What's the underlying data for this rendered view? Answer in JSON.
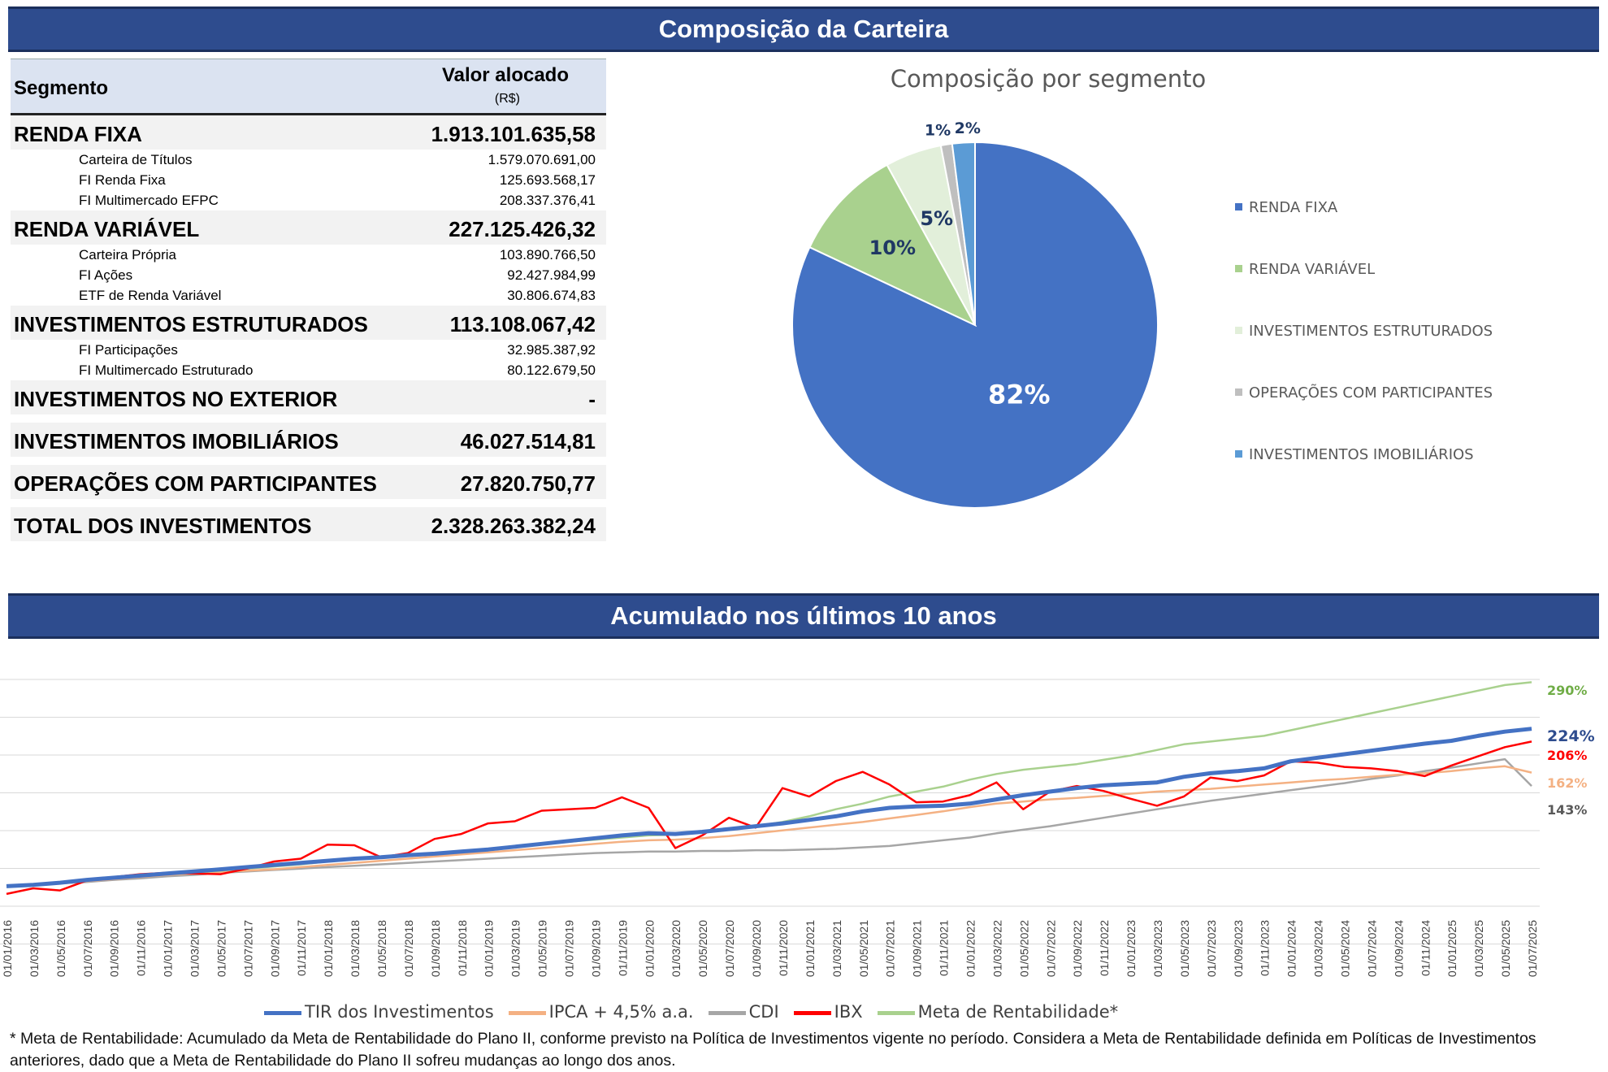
{
  "banner_top": "Composição da Carteira",
  "banner_bottom": "Acumulado nos últimos 10 anos",
  "table": {
    "header_segment": "Segmento",
    "header_value": "Valor alocado",
    "header_unit": "(R$)",
    "rows": [
      {
        "kind": "main",
        "label": "RENDA FIXA",
        "value": "1.913.101.635,58"
      },
      {
        "kind": "sub",
        "label": "Carteira de Títulos",
        "value": "1.579.070.691,00"
      },
      {
        "kind": "sub",
        "label": "FI Renda Fixa",
        "value": "125.693.568,17"
      },
      {
        "kind": "sub",
        "label": "FI Multimercado EFPC",
        "value": "208.337.376,41"
      },
      {
        "kind": "main",
        "label": "RENDA VARIÁVEL",
        "value": "227.125.426,32"
      },
      {
        "kind": "sub",
        "label": "Carteira Própria",
        "value": "103.890.766,50"
      },
      {
        "kind": "sub",
        "label": "FI Ações",
        "value": "92.427.984,99"
      },
      {
        "kind": "sub",
        "label": "ETF de Renda Variável",
        "value": "30.806.674,83"
      },
      {
        "kind": "main",
        "label": "INVESTIMENTOS ESTRUTURADOS",
        "value": "113.108.067,42"
      },
      {
        "kind": "sub",
        "label": "FI Participações",
        "value": "32.985.387,92"
      },
      {
        "kind": "sub",
        "label": "FI Multimercado Estruturado",
        "value": "80.122.679,50"
      },
      {
        "kind": "main",
        "label": "INVESTIMENTOS NO EXTERIOR",
        "value": "-"
      },
      {
        "kind": "main",
        "label": "INVESTIMENTOS IMOBILIÁRIOS",
        "value": "46.027.514,81"
      },
      {
        "kind": "main",
        "label": "OPERAÇÕES COM PARTICIPANTES",
        "value": "27.820.750,77"
      },
      {
        "kind": "main",
        "label": "TOTAL DOS INVESTIMENTOS",
        "value": "2.328.263.382,24"
      }
    ]
  },
  "footnote": "* Meta de Rentabilidade: Acumulado da Meta de Rentabilidade do Plano II, conforme previsto na Política de Investimentos vigente no período. Considera a Meta de Rentabilidade definida em Políticas de Investimentos anteriores, dado que a Meta de Rentabilidade do Plano II sofreu mudanças ao longo dos anos.",
  "chart_data": [
    {
      "type": "pie",
      "title": "Composição por segmento",
      "labels": [
        "RENDA FIXA",
        "RENDA VARIÁVEL",
        "INVESTIMENTOS ESTRUTURADOS",
        "OPERAÇÕES COM PARTICIPANTES",
        "INVESTIMENTOS IMOBILIÁRIOS"
      ],
      "values": [
        82,
        10,
        5,
        1,
        2
      ],
      "value_labels": [
        "82%",
        "10%",
        "5%",
        "1%",
        "2%"
      ],
      "colors": [
        "#4472c4",
        "#a9d18e",
        "#e2efda",
        "#bfbfbf",
        "#5b9bd5"
      ],
      "legend_position": "right"
    },
    {
      "type": "line",
      "x_start": "01/01/2016",
      "x_step_months": 2,
      "x": [
        "01/01/2016",
        "01/03/2016",
        "01/05/2016",
        "01/07/2016",
        "01/09/2016",
        "01/11/2016",
        "01/01/2017",
        "01/03/2017",
        "01/05/2017",
        "01/07/2017",
        "01/09/2017",
        "01/11/2017",
        "01/01/2018",
        "01/03/2018",
        "01/05/2018",
        "01/07/2018",
        "01/09/2018",
        "01/11/2018",
        "01/01/2019",
        "01/03/2019",
        "01/05/2019",
        "01/07/2019",
        "01/09/2019",
        "01/11/2019",
        "01/01/2020",
        "01/03/2020",
        "01/05/2020",
        "01/07/2020",
        "01/09/2020",
        "01/11/2020",
        "01/01/2021",
        "01/03/2021",
        "01/05/2021",
        "01/07/2021",
        "01/09/2021",
        "01/11/2021",
        "01/01/2022",
        "01/03/2022",
        "01/05/2022",
        "01/07/2022",
        "01/09/2022",
        "01/11/2022",
        "01/01/2023",
        "01/03/2023",
        "01/05/2023",
        "01/07/2023",
        "01/09/2023",
        "01/11/2023",
        "01/01/2024",
        "01/03/2024",
        "01/05/2024",
        "01/07/2024",
        "01/09/2024",
        "01/11/2024",
        "01/01/2025",
        "01/03/2025",
        "01/05/2025",
        "01/07/2025"
      ],
      "ylim": [
        -40,
        340
      ],
      "grid": true,
      "legend_position": "bottom",
      "series": [
        {
          "name": "TIR dos Investimentos",
          "color": "#4472c4",
          "end_label": "224%",
          "values": [
            1,
            3,
            6,
            10,
            13,
            16,
            19,
            22,
            25,
            28,
            31,
            34,
            37,
            40,
            42,
            45,
            47,
            50,
            53,
            57,
            61,
            65,
            69,
            73,
            76,
            75,
            78,
            82,
            86,
            90,
            95,
            100,
            107,
            112,
            114,
            115,
            118,
            124,
            130,
            135,
            140,
            144,
            146,
            148,
            156,
            161,
            164,
            168,
            178,
            183,
            188,
            193,
            198,
            203,
            207,
            214,
            220,
            224
          ]
        },
        {
          "name": "IPCA + 4,5% a.a.",
          "color": "#f4b183",
          "end_label": "162%",
          "values": [
            1,
            3,
            5,
            8,
            11,
            14,
            17,
            19,
            21,
            23,
            25,
            28,
            31,
            34,
            37,
            40,
            43,
            46,
            49,
            52,
            55,
            58,
            61,
            64,
            66,
            67,
            69,
            72,
            76,
            80,
            84,
            88,
            92,
            97,
            102,
            107,
            113,
            118,
            121,
            124,
            126,
            129,
            132,
            135,
            137,
            139,
            142,
            145,
            148,
            151,
            153,
            156,
            159,
            161,
            164,
            168,
            171,
            162
          ]
        },
        {
          "name": "CDI",
          "color": "#a6a6a6",
          "end_label": "143%",
          "values": [
            1,
            3,
            5,
            7,
            10,
            12,
            15,
            17,
            20,
            22,
            24,
            26,
            28,
            30,
            32,
            34,
            36,
            38,
            40,
            42,
            44,
            46,
            48,
            49,
            50,
            50,
            51,
            51,
            52,
            52,
            53,
            54,
            56,
            58,
            62,
            66,
            70,
            76,
            81,
            86,
            92,
            98,
            104,
            110,
            116,
            122,
            127,
            132,
            137,
            142,
            147,
            153,
            158,
            164,
            169,
            175,
            181,
            143
          ]
        },
        {
          "name": "IBX",
          "color": "#ff0000",
          "end_label": "206%",
          "values": [
            -10,
            -2,
            -5,
            9,
            14,
            18,
            20,
            19,
            18,
            26,
            36,
            40,
            60,
            59,
            42,
            48,
            68,
            75,
            90,
            93,
            108,
            110,
            112,
            127,
            112,
            55,
            73,
            98,
            84,
            140,
            128,
            150,
            163,
            145,
            120,
            121,
            130,
            148,
            110,
            135,
            143,
            136,
            125,
            115,
            128,
            155,
            150,
            158,
            178,
            176,
            170,
            168,
            164,
            157,
            172,
            185,
            198,
            206
          ]
        },
        {
          "name": "Meta de Rentabilidade*",
          "color": "#a9d18e",
          "end_label": "290%",
          "values": [
            1,
            3,
            6,
            9,
            12,
            15,
            18,
            20,
            23,
            26,
            29,
            32,
            36,
            39,
            42,
            45,
            48,
            51,
            54,
            58,
            61,
            64,
            67,
            70,
            73,
            74,
            77,
            81,
            86,
            92,
            100,
            110,
            118,
            128,
            135,
            142,
            152,
            160,
            166,
            170,
            174,
            180,
            186,
            194,
            202,
            206,
            210,
            214,
            222,
            230,
            238,
            246,
            254,
            262,
            270,
            278,
            286,
            290
          ]
        }
      ]
    }
  ]
}
